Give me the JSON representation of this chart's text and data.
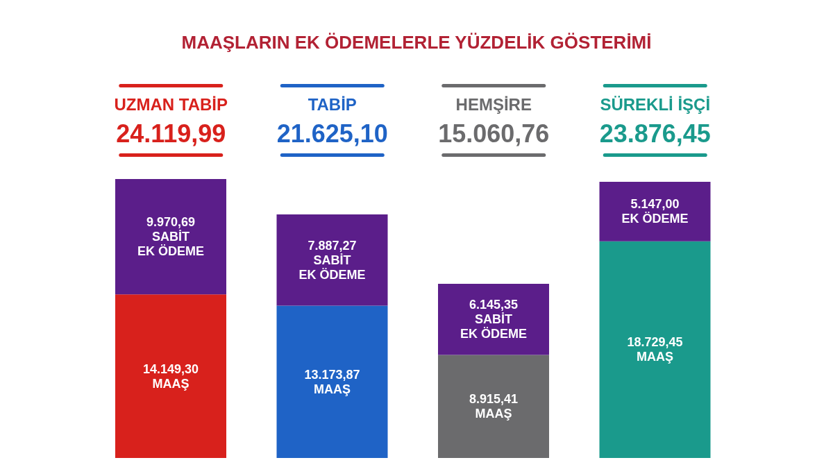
{
  "chart_data": {
    "type": "bar",
    "title": "MAAŞLARIN EK ÖDEMELERLE YÜZDELİK GÖSTERİMİ",
    "categories": [
      "UZMAN TABİP",
      "TABİP",
      "HEMŞİRE",
      "SÜREKLİ İŞÇİ"
    ],
    "stacked": true,
    "series": [
      {
        "colors": [
          "#d8211c",
          "#1f63c6",
          "#6b6b6d",
          "#1a9a8c"
        ],
        "values": [
          14149.3,
          13173.87,
          8915.41,
          18729.45
        ],
        "value_labels": [
          "14.149,30\nMAAŞ",
          "13.173,87\nMAAŞ",
          "8.915,41\nMAAŞ",
          "18.729,45\nMAAŞ"
        ]
      },
      {
        "color": "#5b1e8a",
        "values": [
          9970.69,
          7887.27,
          6145.35,
          5147.0
        ],
        "value_labels": [
          "9.970,69\nSABİT\nEK ÖDEME",
          "7.887,27\nSABİT\nEK ÖDEME",
          "6.145,35\nSABİT\nEK ÖDEME",
          "5.147,00\nEK ÖDEME"
        ]
      }
    ],
    "annotations": [
      "24.119,99",
      "21.625,10",
      "15.060,76",
      "23.876,45"
    ],
    "tick_labels": "x"
  }
}
